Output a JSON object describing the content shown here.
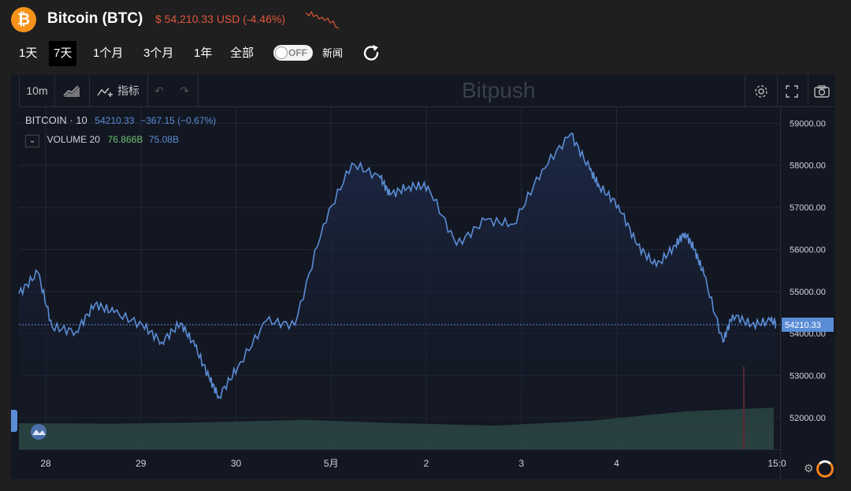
{
  "header": {
    "coin_symbol": "₿",
    "coin_name": "Bitcoin (BTC)",
    "price_text": "$ 54,210.33 USD (-4.46%)"
  },
  "ranges": [
    {
      "label": "1天",
      "active": false
    },
    {
      "label": "7天",
      "active": true
    },
    {
      "label": "1个月",
      "active": false
    },
    {
      "label": "3个月",
      "active": false
    },
    {
      "label": "1年",
      "active": false
    },
    {
      "label": "全部",
      "active": false
    }
  ],
  "toggle": {
    "label": "OFF",
    "caption": "新闻"
  },
  "toolbar": {
    "interval": "10m",
    "indicators": "指标",
    "watermark": "Bitpush"
  },
  "legend": {
    "symbol": "BITCOIN",
    "interval": "10",
    "last": "54210.33",
    "change": "−367.15 (−0.67%)",
    "volume_label": "VOLUME 20",
    "volume_a": "76.866B",
    "volume_b": "75.08B"
  },
  "colors": {
    "line": "#5b8dd6",
    "volume": "#2f4f4a",
    "price_negative": "#e0563c",
    "volume_green": "#6fbf73",
    "accent_orange": "#f7931a"
  },
  "chart_data": {
    "type": "line",
    "title": "BITCOIN",
    "xlabel": "",
    "ylabel": "",
    "x_ticks": [
      "28",
      "29",
      "30",
      "5月",
      "2",
      "3",
      "4",
      "15:0"
    ],
    "y_ticks": [
      59000,
      58000,
      57000,
      56000,
      55000,
      54000,
      53000,
      52000
    ],
    "ylim": [
      51250,
      59400
    ],
    "last_value": 54210.33,
    "grid": true,
    "series": [
      {
        "name": "BITCOIN",
        "x": [
          0,
          0.2,
          0.35,
          0.6,
          0.8,
          1.0,
          1.3,
          1.5,
          1.7,
          1.85,
          2.0,
          2.1,
          2.3,
          2.6,
          2.9,
          3.2,
          3.5,
          3.8,
          3.9,
          4.1,
          4.3,
          4.6,
          4.9,
          5.2,
          5.5,
          5.8,
          6.0,
          6.1,
          6.3,
          6.5,
          6.7,
          6.9,
          7.0,
          7.1,
          7.2,
          7.4,
          7.5,
          7.7,
          7.9,
          8.0
        ],
        "y": [
          54950,
          55450,
          54150,
          54050,
          54700,
          54500,
          54200,
          53800,
          54250,
          53700,
          52950,
          52500,
          53200,
          54300,
          54200,
          56600,
          58050,
          57700,
          57300,
          57500,
          57500,
          56100,
          56700,
          56600,
          57900,
          58750,
          57900,
          57500,
          57050,
          56100,
          55600,
          56100,
          56400,
          56000,
          55400,
          53800,
          54450,
          54210,
          54300,
          54210
        ]
      },
      {
        "name": "VOLUME 20",
        "x": [
          0,
          1,
          2,
          3,
          4,
          5,
          6,
          7,
          8
        ],
        "y": [
          0.55,
          0.54,
          0.57,
          0.62,
          0.55,
          0.5,
          0.6,
          0.8,
          0.88
        ]
      }
    ]
  }
}
